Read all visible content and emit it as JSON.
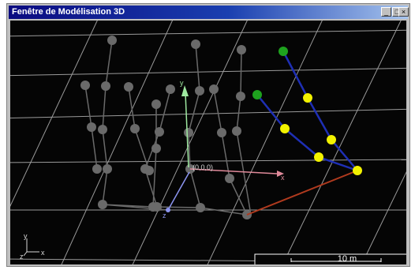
{
  "window": {
    "title": "Fenêtre de Modélisation 3D"
  },
  "controls": {
    "minimize": "_",
    "maximize": "□",
    "close": "×"
  },
  "scene": {
    "origin_label": "(0,0,0)",
    "axis_x_label": "x",
    "axis_y_label": "y",
    "axis_z_label": "z",
    "scale_label": "10 m",
    "colors": {
      "background": "#050505",
      "grid": "#9a9a9a",
      "ghost_skeleton": "#6a6a6a",
      "active_skeleton": "#1e2fb4",
      "joint": "#f2f200",
      "end_effector": "#1ea21e",
      "link": "#b03a1e",
      "axis_x": "#e08a9a",
      "axis_y": "#9ee8a0",
      "axis_z": "#8c95f0"
    }
  }
}
